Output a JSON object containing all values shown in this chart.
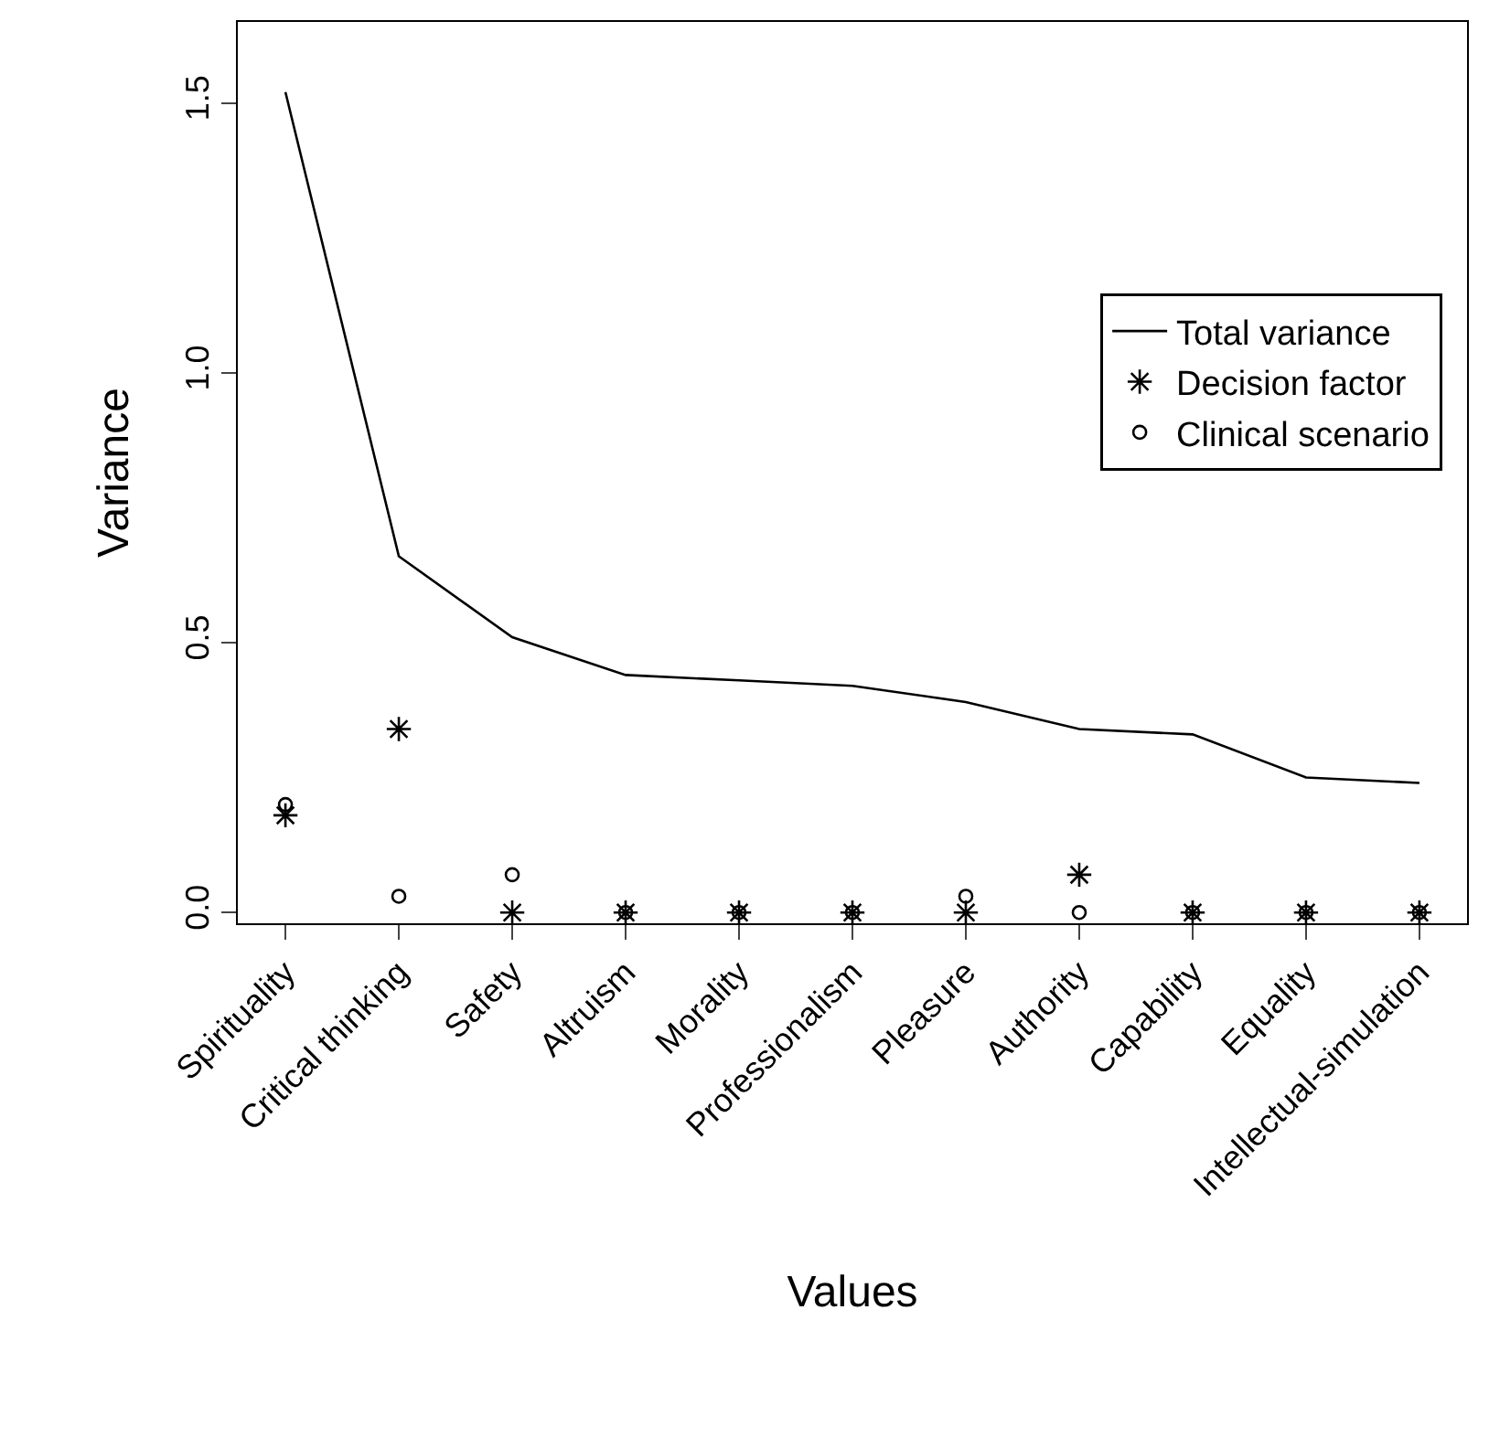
{
  "chart_data": {
    "type": "line",
    "xlabel": "Values",
    "ylabel": "Variance",
    "categories": [
      "Spirituality",
      "Critical thinking",
      "Safety",
      "Altruism",
      "Morality",
      "Professionalism",
      "Pleasure",
      "Authority",
      "Capability",
      "Equality",
      "Intellectual-simulation"
    ],
    "series": [
      {
        "name": "Total variance",
        "color": "#000000",
        "marker": "none",
        "line_style": "solid",
        "values": [
          1.52,
          0.66,
          0.51,
          0.44,
          0.43,
          0.42,
          0.39,
          0.34,
          0.33,
          0.25,
          0.24
        ]
      },
      {
        "name": "Decision factor",
        "type": "scatter",
        "color": "#000000",
        "marker": "cross",
        "values": [
          0.18,
          0.34,
          0,
          0,
          0,
          0,
          0,
          0.07,
          0,
          0,
          0
        ]
      },
      {
        "name": "Clinical scenario",
        "type": "scatter",
        "color": "#000000",
        "marker": "circle",
        "values": [
          0.2,
          0.03,
          0.07,
          0,
          0,
          0,
          0.03,
          0,
          0,
          0,
          0
        ]
      }
    ],
    "ylim": [
      -0.02,
      1.65
    ],
    "yticks": [
      {
        "value": 0,
        "label": "0.0"
      },
      0.5,
      {
        "value": 1,
        "label": "1.0"
      },
      1.5
    ],
    "legend": "right"
  }
}
